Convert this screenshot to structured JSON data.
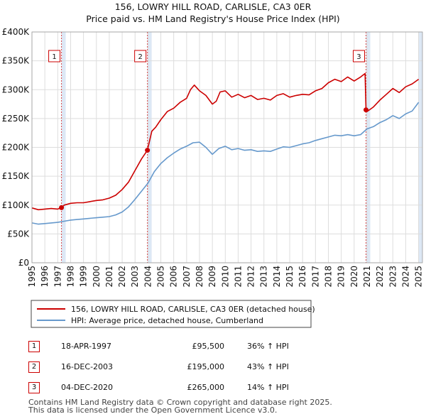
{
  "chart_data": {
    "type": "line",
    "title": "156, LOWRY HILL ROAD, CARLISLE, CA3 0ER",
    "subtitle": "Price paid vs. HM Land Registry's House Price Index (HPI)",
    "xlim": [
      1995,
      2025.3
    ],
    "ylim": [
      0,
      400000
    ],
    "y_ticks": [
      {
        "value": 0,
        "label": "£0"
      },
      {
        "value": 50000,
        "label": "£50K"
      },
      {
        "value": 100000,
        "label": "£100K"
      },
      {
        "value": 150000,
        "label": "£150K"
      },
      {
        "value": 200000,
        "label": "£200K"
      },
      {
        "value": 250000,
        "label": "£250K"
      },
      {
        "value": 300000,
        "label": "£300K"
      },
      {
        "value": 350000,
        "label": "£350K"
      },
      {
        "value": 400000,
        "label": "£400K"
      }
    ],
    "x_ticks": [
      "1995",
      "1996",
      "1997",
      "1998",
      "1999",
      "2000",
      "2001",
      "2002",
      "2003",
      "2004",
      "2005",
      "2006",
      "2007",
      "2008",
      "2009",
      "2010",
      "2011",
      "2012",
      "2013",
      "2014",
      "2015",
      "2016",
      "2017",
      "2018",
      "2019",
      "2020",
      "2021",
      "2022",
      "2023",
      "2024",
      "2025"
    ],
    "grid": true,
    "legend_position": "below",
    "series": [
      {
        "name": "156, LOWRY HILL ROAD, CARLISLE, CA3 0ER (detached house)",
        "color": "#cc0000",
        "x": [
          1995.0,
          1995.5,
          1996.0,
          1996.5,
          1997.0,
          1997.29,
          1997.5,
          1998.0,
          1998.5,
          1999.0,
          1999.5,
          2000.0,
          2000.5,
          2001.0,
          2001.5,
          2002.0,
          2002.5,
          2003.0,
          2003.5,
          2003.96,
          2004.3,
          2004.6,
          2005.0,
          2005.5,
          2006.0,
          2006.5,
          2007.0,
          2007.3,
          2007.6,
          2008.0,
          2008.5,
          2009.0,
          2009.3,
          2009.6,
          2010.0,
          2010.5,
          2011.0,
          2011.5,
          2012.0,
          2012.5,
          2013.0,
          2013.5,
          2014.0,
          2014.5,
          2015.0,
          2015.5,
          2016.0,
          2016.5,
          2017.0,
          2017.5,
          2018.0,
          2018.5,
          2019.0,
          2019.5,
          2020.0,
          2020.5,
          2020.85,
          2020.92,
          2021.0,
          2021.5,
          2022.0,
          2022.5,
          2023.0,
          2023.5,
          2024.0,
          2024.5,
          2025.0
        ],
        "values": [
          95000,
          92000,
          93000,
          94000,
          93000,
          95500,
          100000,
          103000,
          104000,
          104000,
          106000,
          108000,
          109000,
          112000,
          117000,
          127000,
          140000,
          160000,
          180000,
          195000,
          228000,
          235000,
          248000,
          262000,
          268000,
          278000,
          285000,
          300000,
          308000,
          298000,
          290000,
          275000,
          280000,
          296000,
          298000,
          287000,
          292000,
          286000,
          290000,
          283000,
          285000,
          282000,
          290000,
          293000,
          287000,
          290000,
          292000,
          291000,
          298000,
          302000,
          312000,
          318000,
          314000,
          322000,
          315000,
          322000,
          328000,
          265000,
          262000,
          270000,
          282000,
          292000,
          302000,
          295000,
          305000,
          310000,
          318000
        ]
      },
      {
        "name": "HPI: Average price, detached house, Cumberland",
        "color": "#6699cc",
        "x": [
          1995.0,
          1995.5,
          1996.0,
          1996.5,
          1997.0,
          1997.5,
          1998.0,
          1998.5,
          1999.0,
          1999.5,
          2000.0,
          2000.5,
          2001.0,
          2001.5,
          2002.0,
          2002.5,
          2003.0,
          2003.5,
          2004.0,
          2004.5,
          2005.0,
          2005.5,
          2006.0,
          2006.5,
          2007.0,
          2007.5,
          2008.0,
          2008.5,
          2009.0,
          2009.5,
          2010.0,
          2010.5,
          2011.0,
          2011.5,
          2012.0,
          2012.5,
          2013.0,
          2013.5,
          2014.0,
          2014.5,
          2015.0,
          2015.5,
          2016.0,
          2016.5,
          2017.0,
          2017.5,
          2018.0,
          2018.5,
          2019.0,
          2019.5,
          2020.0,
          2020.5,
          2021.0,
          2021.5,
          2022.0,
          2022.5,
          2023.0,
          2023.5,
          2024.0,
          2024.5,
          2025.0
        ],
        "values": [
          69000,
          67000,
          68000,
          69000,
          70000,
          72000,
          74000,
          75000,
          76000,
          77000,
          78000,
          79000,
          80000,
          83000,
          88000,
          97000,
          110000,
          124000,
          138000,
          158000,
          172000,
          182000,
          190000,
          197000,
          202000,
          208000,
          209000,
          200000,
          188000,
          198000,
          202000,
          196000,
          198000,
          195000,
          196000,
          193000,
          194000,
          193000,
          197000,
          201000,
          200000,
          203000,
          206000,
          208000,
          212000,
          215000,
          218000,
          221000,
          220000,
          222000,
          220000,
          222000,
          232000,
          236000,
          243000,
          248000,
          255000,
          250000,
          258000,
          263000,
          278000
        ]
      }
    ],
    "annotations": [
      {
        "label": "1",
        "date": "18-APR-1997",
        "x": 1997.29,
        "price": 95500,
        "hpi": "36% ↑ HPI"
      },
      {
        "label": "2",
        "date": "16-DEC-2003",
        "x": 2003.96,
        "price": 195000,
        "hpi": "43% ↑ HPI"
      },
      {
        "label": "3",
        "date": "04-DEC-2020",
        "x": 2020.92,
        "price": 265000,
        "hpi": "14% ↑ HPI"
      }
    ],
    "colors": {
      "shade": "#dde8f5",
      "grid": "#dddddd",
      "vline": "#cc0000",
      "marker_border": "#cc0000"
    }
  },
  "table": [
    {
      "num": "1",
      "date": "18-APR-1997",
      "price": "£95,500",
      "hpi": "36% ↑ HPI"
    },
    {
      "num": "2",
      "date": "16-DEC-2003",
      "price": "£195,000",
      "hpi": "43% ↑ HPI"
    },
    {
      "num": "3",
      "date": "04-DEC-2020",
      "price": "£265,000",
      "hpi": "14% ↑ HPI"
    }
  ],
  "footer": {
    "line1": "Contains HM Land Registry data © Crown copyright and database right 2025.",
    "line2": "This data is licensed under the Open Government Licence v3.0."
  }
}
